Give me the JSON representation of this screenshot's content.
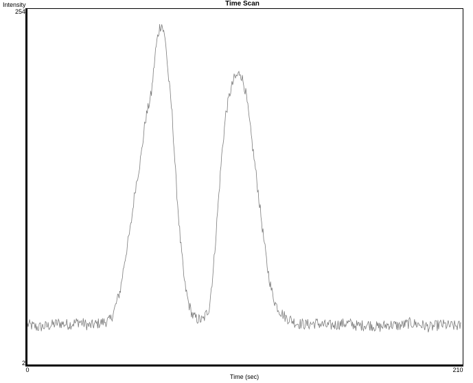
{
  "chart_data": {
    "type": "line",
    "title": "Time Scan",
    "xlabel": "Time (sec)",
    "ylabel": "Intensity",
    "xlim": [
      0,
      210
    ],
    "ylim": [
      2,
      254
    ],
    "x_ticks": [
      "0",
      "210"
    ],
    "y_ticks": [
      "254",
      "2"
    ],
    "grid": false,
    "colors": {
      "line": "#7a7a7a",
      "axis": "#000000",
      "background": "#ffffff"
    },
    "series": [
      {
        "x": [
          0,
          5,
          10,
          15,
          20,
          25,
          30,
          35,
          40,
          42,
          45,
          47,
          50,
          52,
          55,
          57,
          60,
          61,
          62,
          63,
          64,
          65,
          66,
          67,
          68,
          70,
          71,
          72,
          74,
          76,
          78,
          80,
          82,
          85,
          88,
          90,
          92,
          94,
          96,
          98,
          100,
          102,
          103,
          104,
          105,
          106,
          107,
          108,
          110,
          112,
          114,
          116,
          118,
          120,
          122,
          125,
          128,
          130,
          135,
          140,
          145,
          150,
          155,
          160,
          165,
          170,
          175,
          180,
          185,
          190,
          195,
          200,
          205,
          210
        ],
        "y": [
          30,
          28,
          29,
          31,
          30,
          32,
          29,
          31,
          33,
          40,
          55,
          75,
          100,
          125,
          150,
          175,
          195,
          210,
          225,
          235,
          242,
          244,
          238,
          230,
          210,
          180,
          155,
          130,
          90,
          60,
          45,
          36,
          34,
          33,
          42,
          70,
          110,
          150,
          180,
          195,
          205,
          208,
          210,
          205,
          200,
          192,
          180,
          168,
          145,
          120,
          95,
          72,
          55,
          45,
          40,
          35,
          33,
          31,
          30,
          31,
          29,
          30,
          31,
          29,
          30,
          28,
          30,
          29,
          31,
          30,
          28,
          30,
          29,
          29
        ]
      }
    ]
  }
}
